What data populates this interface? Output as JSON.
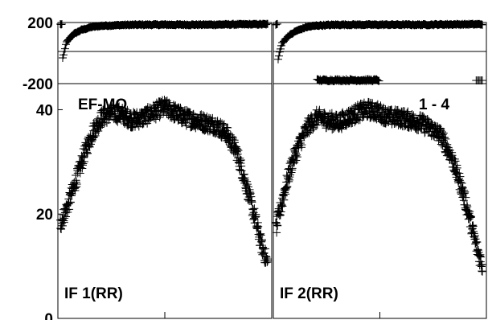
{
  "chart_data": {
    "type": "scatter",
    "marker": "+",
    "marker_color": "#000000",
    "grid": false,
    "overlay_text": {
      "source": "EF-MO",
      "baseline": "1 - 4"
    },
    "phase_axis": {
      "ylim": [
        -200,
        200
      ],
      "ticks": [
        "200",
        "-200"
      ],
      "guide_line_value": 0
    },
    "amp_axis": {
      "ylim": [
        0,
        45
      ],
      "ticks": [
        "40",
        "20",
        "0"
      ]
    },
    "panels": [
      {
        "label": "IF 1(RR)",
        "phase": [
          [
            0.01,
            -55
          ],
          [
            0.03,
            60
          ],
          [
            0.06,
            110
          ],
          [
            0.1,
            140
          ],
          [
            0.15,
            160
          ],
          [
            0.2,
            168
          ],
          [
            0.3,
            173
          ],
          [
            0.4,
            175
          ],
          [
            0.55,
            175
          ],
          [
            0.7,
            175
          ],
          [
            0.85,
            177
          ],
          [
            1.0,
            178
          ]
        ],
        "amp": [
          [
            0.0,
            18
          ],
          [
            0.04,
            22
          ],
          [
            0.08,
            27
          ],
          [
            0.12,
            32
          ],
          [
            0.16,
            36
          ],
          [
            0.2,
            38.5
          ],
          [
            0.25,
            39.5
          ],
          [
            0.3,
            39.0
          ],
          [
            0.35,
            38.0
          ],
          [
            0.4,
            38.5
          ],
          [
            0.45,
            39.5
          ],
          [
            0.5,
            40.5
          ],
          [
            0.55,
            39.5
          ],
          [
            0.6,
            38.5
          ],
          [
            0.65,
            38.0
          ],
          [
            0.7,
            37.5
          ],
          [
            0.75,
            37.0
          ],
          [
            0.8,
            35.5
          ],
          [
            0.85,
            32.0
          ],
          [
            0.9,
            25.0
          ],
          [
            0.94,
            19.0
          ],
          [
            0.97,
            14.0
          ],
          [
            1.0,
            10.5
          ]
        ]
      },
      {
        "label": "IF 2(RR)",
        "phase": [
          [
            0.01,
            -60
          ],
          [
            0.03,
            55
          ],
          [
            0.06,
            100
          ],
          [
            0.1,
            135
          ],
          [
            0.15,
            160
          ],
          [
            0.2,
            170
          ],
          [
            0.3,
            175
          ],
          [
            0.4,
            175
          ],
          [
            0.55,
            175
          ],
          [
            0.7,
            175
          ],
          [
            0.85,
            177
          ],
          [
            1.0,
            178
          ]
        ],
        "phase_cluster": {
          "x_range": [
            0.2,
            0.5
          ],
          "y": -200
        },
        "phase_outlier": {
          "x_range": [
            0.97,
            1.0
          ],
          "y": -200
        },
        "amp": [
          [
            0.0,
            17
          ],
          [
            0.04,
            24
          ],
          [
            0.08,
            30
          ],
          [
            0.12,
            34
          ],
          [
            0.16,
            37
          ],
          [
            0.2,
            38.5
          ],
          [
            0.25,
            38.0
          ],
          [
            0.3,
            37.5
          ],
          [
            0.35,
            38.5
          ],
          [
            0.4,
            39.5
          ],
          [
            0.45,
            40.0
          ],
          [
            0.5,
            39.5
          ],
          [
            0.55,
            38.5
          ],
          [
            0.6,
            38.5
          ],
          [
            0.65,
            38.0
          ],
          [
            0.7,
            37.5
          ],
          [
            0.75,
            36.5
          ],
          [
            0.8,
            35.0
          ],
          [
            0.85,
            31.0
          ],
          [
            0.9,
            25.0
          ],
          [
            0.94,
            19.0
          ],
          [
            0.97,
            14.0
          ],
          [
            1.0,
            10.0
          ]
        ]
      }
    ]
  }
}
